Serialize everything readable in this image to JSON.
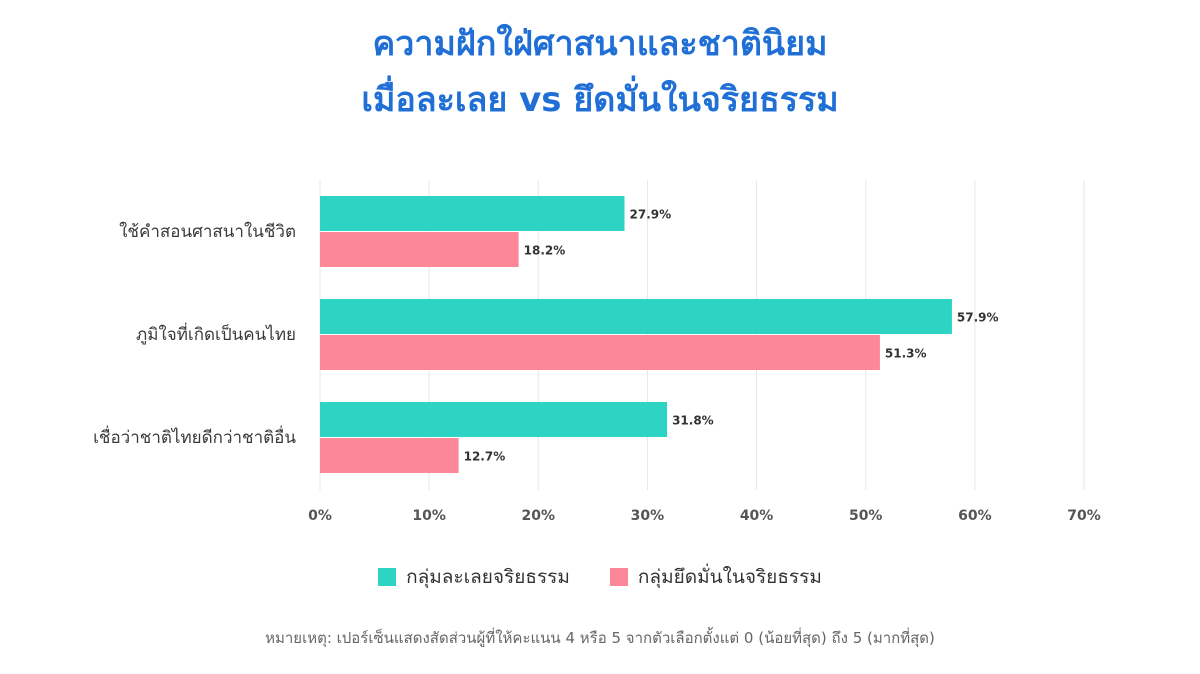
{
  "chart_data": {
    "type": "bar",
    "orientation": "horizontal",
    "title": [
      "ความฝักใฝ่ศาสนาและชาตินิยม",
      "เมื่อละเลย vs ยึดมั่นในจริยธรรม"
    ],
    "categories": [
      "ใช้คำสอนศาสนาในชีวิต",
      "ภูมิใจที่เกิดเป็นคนไทย",
      "เชื่อว่าชาติไทยดีกว่าชาติอื่น"
    ],
    "series": [
      {
        "name": "กลุ่มละเลยจริยธรรม",
        "color": "#2dd4c4",
        "values": [
          27.9,
          57.9,
          31.8
        ]
      },
      {
        "name": "กลุ่มยึดมั่นในจริยธรรม",
        "color": "#fb8799",
        "values": [
          18.2,
          51.3,
          12.7
        ]
      }
    ],
    "value_labels": [
      [
        "27.9%",
        "57.9%",
        "31.8%"
      ],
      [
        "18.2%",
        "51.3%",
        "12.7%"
      ]
    ],
    "xlim": [
      0,
      70
    ],
    "x_ticks": [
      "0%",
      "10%",
      "20%",
      "30%",
      "40%",
      "50%",
      "60%",
      "70%"
    ],
    "grid": true,
    "legend_position": "bottom",
    "note": "หมายเหตุ: เปอร์เซ็นแสดงสัดส่วนผู้ที่ให้คะแนน 4 หรือ 5 จากตัวเลือกตั้งแต่ 0 (น้อยที่สุด) ถึง 5 (มากที่สุด)"
  }
}
